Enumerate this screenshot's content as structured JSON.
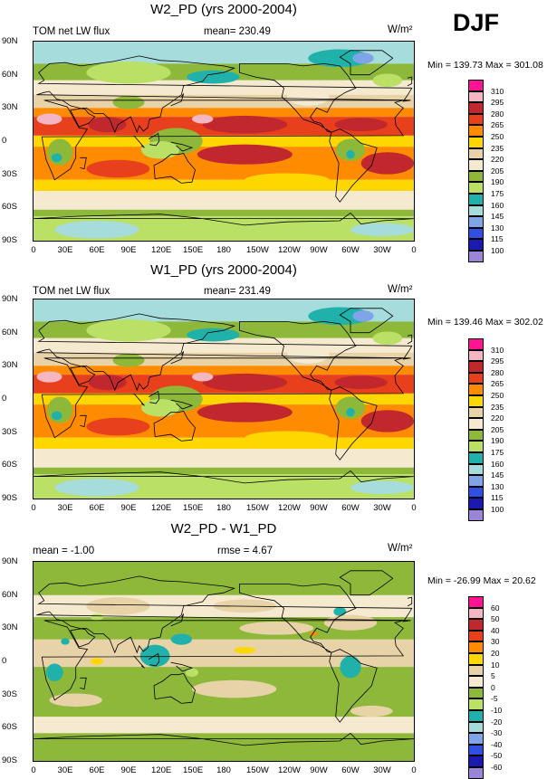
{
  "season": "DJF",
  "units_label": "W/m²",
  "lat_ticks": [
    "90N",
    "60N",
    "30N",
    "0",
    "30S",
    "60S",
    "90S"
  ],
  "lon_ticks": [
    "0",
    "30E",
    "60E",
    "90E",
    "120E",
    "150E",
    "180",
    "150W",
    "120W",
    "90W",
    "60W",
    "30W",
    "0"
  ],
  "panels": [
    {
      "title": "W2_PD (yrs 2000-2004)",
      "left_label": "TOM net LW flux",
      "mid_label": "mean= 230.49",
      "right_label": "W/m²",
      "stats": "Min = 139.73 Max = 301.08",
      "type": "abs"
    },
    {
      "title": "W1_PD (yrs 2000-2004)",
      "left_label": "TOM net LW flux",
      "mid_label": "mean= 231.49",
      "right_label": "W/m²",
      "stats": "Min = 139.46 Max = 302.02",
      "type": "abs"
    },
    {
      "title": "W2_PD - W1_PD",
      "left_label": "mean =  -1.00",
      "mid_label": "rmse =   4.67",
      "right_label": "W/m²",
      "stats": "Min = -26.99 Max =  20.62",
      "type": "diff"
    }
  ],
  "legend_abs": {
    "labels": [
      "310",
      "295",
      "280",
      "265",
      "250",
      "235",
      "220",
      "205",
      "190",
      "175",
      "160",
      "145",
      "130",
      "115",
      "100"
    ],
    "colors": [
      "#ff1493",
      "#f4b6c2",
      "#c0282d",
      "#e8401c",
      "#ff8c00",
      "#ffd700",
      "#e8d2a8",
      "#f5ead0",
      "#8db83a",
      "#bbe066",
      "#20b2aa",
      "#a6dcdc",
      "#7fa5e8",
      "#2f50e0",
      "#1a1ab0",
      "#9a85d8"
    ]
  },
  "legend_diff": {
    "labels": [
      "60",
      "50",
      "40",
      "30",
      "20",
      "10",
      "5",
      "0",
      "-5",
      "-10",
      "-20",
      "-30",
      "-40",
      "-50",
      "-60"
    ],
    "colors": [
      "#ff1493",
      "#f4b6c2",
      "#c0282d",
      "#e8401c",
      "#ff8c00",
      "#ffd700",
      "#e8d2a8",
      "#f5ead0",
      "#8db83a",
      "#bbe066",
      "#20b2aa",
      "#a6dcdc",
      "#7fa5e8",
      "#2f50e0",
      "#1a1ab0",
      "#9a85d8"
    ]
  }
}
